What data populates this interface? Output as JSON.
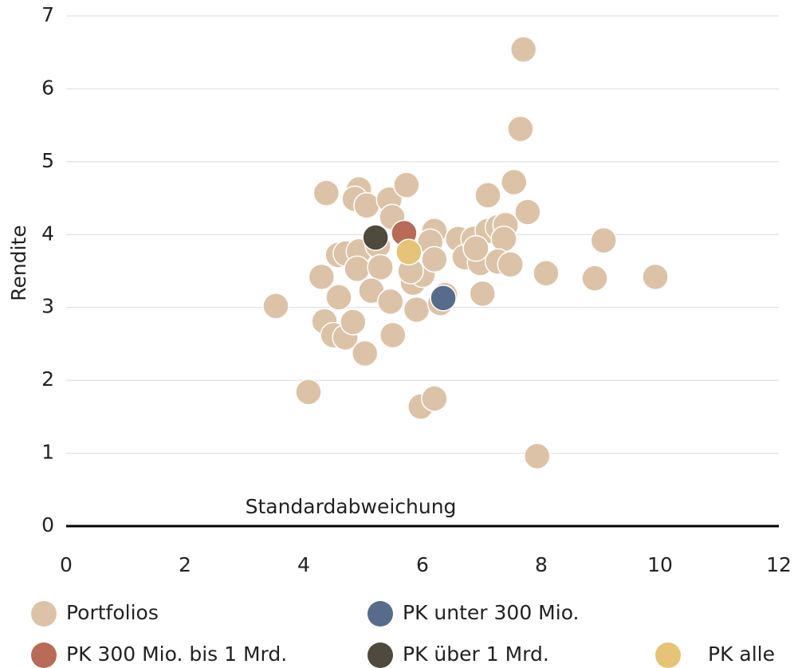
{
  "chart_data": {
    "type": "scatter",
    "x_label": "Standardabweichung",
    "y_label": "Rendite",
    "xlim": [
      0,
      12
    ],
    "xticks": [
      0,
      2,
      4,
      6,
      8,
      10,
      12
    ],
    "ylim": [
      0,
      7
    ],
    "yticks": [
      0,
      1,
      2,
      3,
      4,
      5,
      6,
      7
    ],
    "grid": true,
    "series": [
      {
        "name": "Portfolios",
        "color": "#dcc3a7",
        "x": [
          7.7,
          7.65,
          7.54,
          7.77,
          9.05,
          9.92,
          8.9,
          8.08,
          7.93,
          3.53,
          4.08,
          4.38,
          4.93,
          4.86,
          5.06,
          5.44,
          5.73,
          5.49,
          4.3,
          4.58,
          4.71,
          4.93,
          5.25,
          4.9,
          5.29,
          4.59,
          5.14,
          5.46,
          4.35,
          4.5,
          4.7,
          4.83,
          5.03,
          5.5,
          5.9,
          5.84,
          6.0,
          5.8,
          6.2,
          6.13,
          6.2,
          5.97,
          6.2,
          6.38,
          6.3,
          6.6,
          6.71,
          6.86,
          6.97,
          7.1,
          7.1,
          7.27,
          7.4,
          7.37,
          7.27,
          7.48,
          7.01,
          6.9
        ],
        "y": [
          6.54,
          5.45,
          4.72,
          4.31,
          3.92,
          3.42,
          3.4,
          3.47,
          0.96,
          3.02,
          1.84,
          4.57,
          4.62,
          4.49,
          4.4,
          4.48,
          4.68,
          4.24,
          3.42,
          3.72,
          3.74,
          3.77,
          3.85,
          3.53,
          3.55,
          3.14,
          3.23,
          3.08,
          2.81,
          2.62,
          2.59,
          2.8,
          2.37,
          2.62,
          2.97,
          3.34,
          3.45,
          3.5,
          4.05,
          3.9,
          3.66,
          1.64,
          1.75,
          3.17,
          3.06,
          3.94,
          3.69,
          3.94,
          3.61,
          4.54,
          4.05,
          4.1,
          4.13,
          3.94,
          3.63,
          3.59,
          3.19,
          3.81
        ]
      },
      {
        "name": "PK unter 300 Mio.",
        "color": "#566c8a",
        "x": [
          6.35
        ],
        "y": [
          3.13
        ]
      },
      {
        "name": "PK 300 Mio. bis 1 Mrd.",
        "color": "#b86b56",
        "x": [
          5.69
        ],
        "y": [
          4.02
        ]
      },
      {
        "name": "PK über 1 Mrd.",
        "color": "#4f4a3e",
        "x": [
          5.21
        ],
        "y": [
          3.96
        ]
      },
      {
        "name": "PK alle",
        "color": "#e6c376",
        "x": [
          5.77
        ],
        "y": [
          3.76
        ]
      }
    ]
  }
}
